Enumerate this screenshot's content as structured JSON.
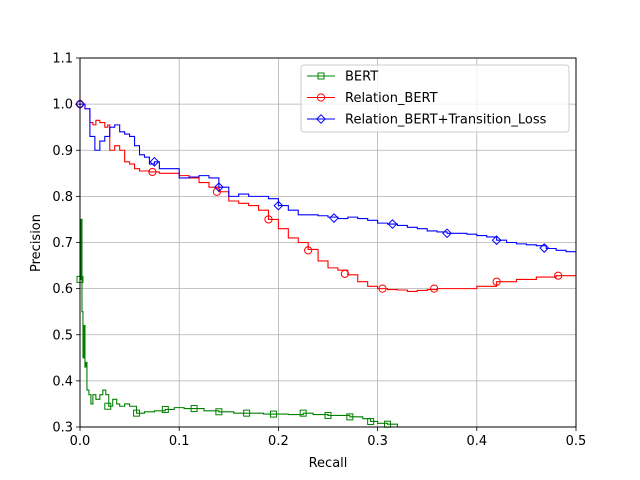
{
  "chart_data": {
    "type": "line",
    "xlabel": "Recall",
    "ylabel": "Precision",
    "xlim": [
      0.0,
      0.5
    ],
    "ylim": [
      0.3,
      1.1
    ],
    "xticks": [
      0.0,
      0.1,
      0.2,
      0.3,
      0.4,
      0.5
    ],
    "xtick_labels": [
      "0.0",
      "0.1",
      "0.2",
      "0.3",
      "0.4",
      "0.5"
    ],
    "yticks": [
      0.3,
      0.4,
      0.5,
      0.6,
      0.7,
      0.8,
      0.9,
      1.0,
      1.1
    ],
    "ytick_labels": [
      "0.3",
      "0.4",
      "0.5",
      "0.6",
      "0.7",
      "0.8",
      "0.9",
      "1.0",
      "1.1"
    ],
    "grid": true,
    "legend_position": "top-right",
    "series": [
      {
        "name": "BERT",
        "color": "#008000",
        "marker": "square",
        "points": [
          [
            0.0,
            0.62
          ],
          [
            0.001,
            0.75
          ],
          [
            0.002,
            0.55
          ],
          [
            0.003,
            0.45
          ],
          [
            0.004,
            0.52
          ],
          [
            0.005,
            0.43
          ],
          [
            0.006,
            0.44
          ],
          [
            0.007,
            0.38
          ],
          [
            0.009,
            0.37
          ],
          [
            0.011,
            0.35
          ],
          [
            0.013,
            0.37
          ],
          [
            0.016,
            0.36
          ],
          [
            0.02,
            0.37
          ],
          [
            0.023,
            0.38
          ],
          [
            0.026,
            0.37
          ],
          [
            0.029,
            0.345
          ],
          [
            0.033,
            0.36
          ],
          [
            0.037,
            0.35
          ],
          [
            0.04,
            0.345
          ],
          [
            0.045,
            0.35
          ],
          [
            0.05,
            0.345
          ],
          [
            0.057,
            0.33
          ],
          [
            0.065,
            0.333
          ],
          [
            0.075,
            0.335
          ],
          [
            0.086,
            0.338
          ],
          [
            0.095,
            0.342
          ],
          [
            0.105,
            0.34
          ],
          [
            0.115,
            0.34
          ],
          [
            0.125,
            0.335
          ],
          [
            0.14,
            0.333
          ],
          [
            0.155,
            0.33
          ],
          [
            0.17,
            0.33
          ],
          [
            0.185,
            0.328
          ],
          [
            0.195,
            0.328
          ],
          [
            0.21,
            0.327
          ],
          [
            0.225,
            0.33
          ],
          [
            0.235,
            0.327
          ],
          [
            0.25,
            0.325
          ],
          [
            0.26,
            0.325
          ],
          [
            0.272,
            0.322
          ],
          [
            0.285,
            0.318
          ],
          [
            0.293,
            0.312
          ],
          [
            0.3,
            0.308
          ],
          [
            0.31,
            0.306
          ],
          [
            0.32,
            0.3
          ],
          [
            0.33,
            0.297
          ]
        ],
        "markers": [
          [
            0.0,
            0.62
          ],
          [
            0.028,
            0.345
          ],
          [
            0.057,
            0.33
          ],
          [
            0.086,
            0.338
          ],
          [
            0.115,
            0.34
          ],
          [
            0.14,
            0.333
          ],
          [
            0.168,
            0.33
          ],
          [
            0.195,
            0.328
          ],
          [
            0.225,
            0.33
          ],
          [
            0.25,
            0.325
          ],
          [
            0.272,
            0.322
          ],
          [
            0.293,
            0.312
          ],
          [
            0.31,
            0.306
          ]
        ]
      },
      {
        "name": "Relation_BERT",
        "color": "#ff0000",
        "marker": "circle",
        "points": [
          [
            0.0,
            1.0
          ],
          [
            0.005,
            0.99
          ],
          [
            0.01,
            0.96
          ],
          [
            0.013,
            0.955
          ],
          [
            0.016,
            0.965
          ],
          [
            0.02,
            0.96
          ],
          [
            0.025,
            0.95
          ],
          [
            0.028,
            0.955
          ],
          [
            0.03,
            0.9
          ],
          [
            0.035,
            0.91
          ],
          [
            0.04,
            0.9
          ],
          [
            0.045,
            0.875
          ],
          [
            0.05,
            0.87
          ],
          [
            0.055,
            0.86
          ],
          [
            0.06,
            0.855
          ],
          [
            0.07,
            0.853
          ],
          [
            0.08,
            0.85
          ],
          [
            0.09,
            0.85
          ],
          [
            0.1,
            0.845
          ],
          [
            0.11,
            0.84
          ],
          [
            0.12,
            0.83
          ],
          [
            0.13,
            0.82
          ],
          [
            0.14,
            0.81
          ],
          [
            0.15,
            0.79
          ],
          [
            0.16,
            0.785
          ],
          [
            0.17,
            0.78
          ],
          [
            0.18,
            0.77
          ],
          [
            0.19,
            0.75
          ],
          [
            0.2,
            0.73
          ],
          [
            0.21,
            0.71
          ],
          [
            0.22,
            0.7
          ],
          [
            0.23,
            0.685
          ],
          [
            0.24,
            0.66
          ],
          [
            0.25,
            0.645
          ],
          [
            0.26,
            0.64
          ],
          [
            0.27,
            0.63
          ],
          [
            0.28,
            0.615
          ],
          [
            0.29,
            0.605
          ],
          [
            0.3,
            0.6
          ],
          [
            0.31,
            0.598
          ],
          [
            0.32,
            0.597
          ],
          [
            0.33,
            0.594
          ],
          [
            0.34,
            0.596
          ],
          [
            0.35,
            0.598
          ],
          [
            0.36,
            0.6
          ],
          [
            0.38,
            0.6
          ],
          [
            0.4,
            0.605
          ],
          [
            0.42,
            0.615
          ],
          [
            0.44,
            0.62
          ],
          [
            0.46,
            0.625
          ],
          [
            0.48,
            0.628
          ],
          [
            0.5,
            0.63
          ]
        ],
        "markers": [
          [
            0.0,
            1.0
          ],
          [
            0.073,
            0.853
          ],
          [
            0.138,
            0.81
          ],
          [
            0.19,
            0.75
          ],
          [
            0.23,
            0.683
          ],
          [
            0.267,
            0.632
          ],
          [
            0.305,
            0.6
          ],
          [
            0.357,
            0.6
          ],
          [
            0.42,
            0.615
          ],
          [
            0.482,
            0.628
          ]
        ]
      },
      {
        "name": "Relation_BERT+Transition_Loss",
        "color": "#0000ff",
        "marker": "diamond",
        "points": [
          [
            0.0,
            1.0
          ],
          [
            0.005,
            0.99
          ],
          [
            0.01,
            0.93
          ],
          [
            0.015,
            0.9
          ],
          [
            0.02,
            0.92
          ],
          [
            0.025,
            0.93
          ],
          [
            0.03,
            0.95
          ],
          [
            0.035,
            0.955
          ],
          [
            0.04,
            0.94
          ],
          [
            0.045,
            0.935
          ],
          [
            0.05,
            0.93
          ],
          [
            0.055,
            0.91
          ],
          [
            0.06,
            0.89
          ],
          [
            0.065,
            0.885
          ],
          [
            0.07,
            0.87
          ],
          [
            0.075,
            0.875
          ],
          [
            0.08,
            0.86
          ],
          [
            0.09,
            0.86
          ],
          [
            0.1,
            0.84
          ],
          [
            0.11,
            0.842
          ],
          [
            0.12,
            0.845
          ],
          [
            0.13,
            0.84
          ],
          [
            0.14,
            0.82
          ],
          [
            0.15,
            0.8
          ],
          [
            0.16,
            0.805
          ],
          [
            0.17,
            0.8
          ],
          [
            0.18,
            0.8
          ],
          [
            0.19,
            0.795
          ],
          [
            0.2,
            0.78
          ],
          [
            0.21,
            0.77
          ],
          [
            0.22,
            0.76
          ],
          [
            0.23,
            0.76
          ],
          [
            0.24,
            0.758
          ],
          [
            0.25,
            0.755
          ],
          [
            0.26,
            0.752
          ],
          [
            0.27,
            0.755
          ],
          [
            0.28,
            0.752
          ],
          [
            0.29,
            0.748
          ],
          [
            0.3,
            0.742
          ],
          [
            0.31,
            0.74
          ],
          [
            0.32,
            0.737
          ],
          [
            0.33,
            0.733
          ],
          [
            0.34,
            0.73
          ],
          [
            0.35,
            0.725
          ],
          [
            0.36,
            0.723
          ],
          [
            0.37,
            0.72
          ],
          [
            0.38,
            0.72
          ],
          [
            0.39,
            0.718
          ],
          [
            0.4,
            0.715
          ],
          [
            0.41,
            0.712
          ],
          [
            0.42,
            0.705
          ],
          [
            0.43,
            0.7
          ],
          [
            0.44,
            0.697
          ],
          [
            0.45,
            0.695
          ],
          [
            0.46,
            0.693
          ],
          [
            0.47,
            0.687
          ],
          [
            0.48,
            0.683
          ],
          [
            0.49,
            0.68
          ],
          [
            0.5,
            0.675
          ]
        ],
        "markers": [
          [
            0.0,
            1.0
          ],
          [
            0.075,
            0.875
          ],
          [
            0.14,
            0.82
          ],
          [
            0.2,
            0.78
          ],
          [
            0.256,
            0.753
          ],
          [
            0.315,
            0.74
          ],
          [
            0.37,
            0.72
          ],
          [
            0.42,
            0.705
          ],
          [
            0.468,
            0.688
          ]
        ]
      }
    ]
  }
}
